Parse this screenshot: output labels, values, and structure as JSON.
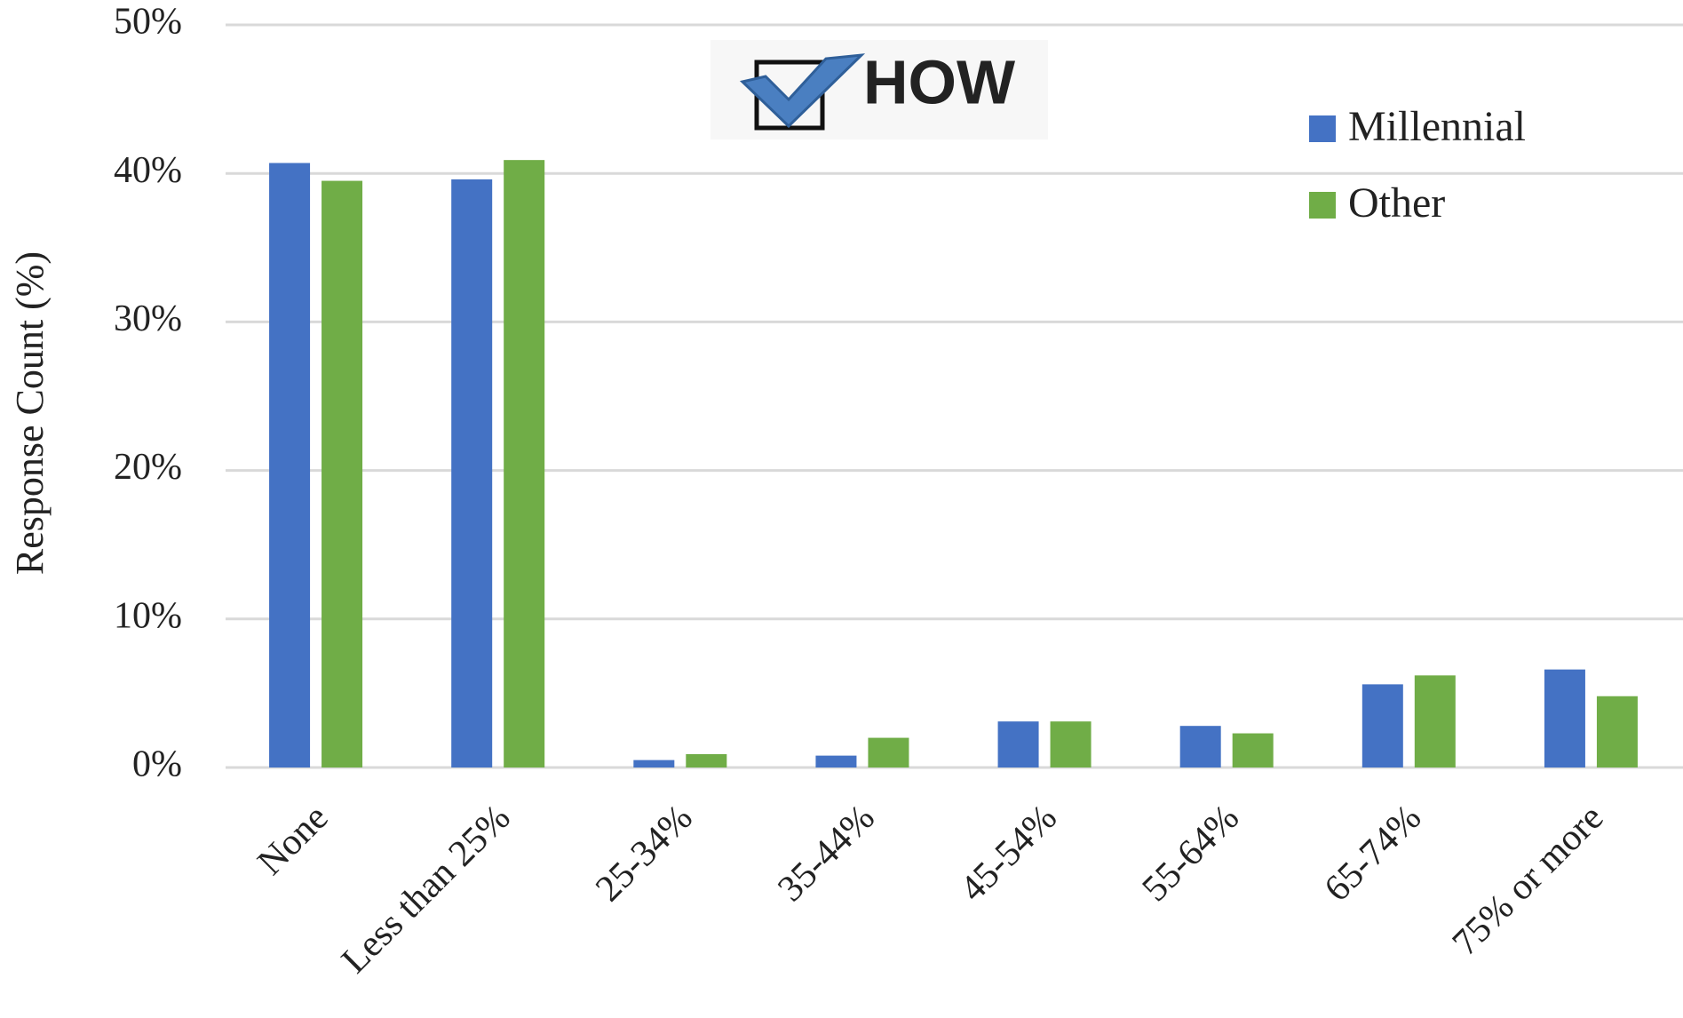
{
  "chart_data": {
    "type": "bar",
    "annotations": [
      "HOW"
    ],
    "ylabel": "Response Count (%)",
    "categories": [
      "None",
      "Less than 25%",
      "25-34%",
      "35-44%",
      "45-54%",
      "55-64%",
      "65-74%",
      "75% or more"
    ],
    "series": [
      {
        "name": "Millennial",
        "color": "#4472c4",
        "values": [
          40.7,
          39.6,
          0.5,
          0.8,
          3.1,
          2.8,
          5.6,
          6.6
        ]
      },
      {
        "name": "Other",
        "color": "#70ad47",
        "values": [
          39.5,
          40.9,
          0.9,
          2.0,
          3.1,
          2.3,
          6.2,
          4.8
        ]
      }
    ],
    "ylim": [
      0,
      50
    ],
    "yticks": [
      {
        "value": 0,
        "label": "0%"
      },
      {
        "value": 10,
        "label": "10%"
      },
      {
        "value": 20,
        "label": "20%"
      },
      {
        "value": 30,
        "label": "30%"
      },
      {
        "value": 40,
        "label": "40%"
      },
      {
        "value": 50,
        "label": "50%"
      }
    ],
    "grid": true,
    "legend": "top-right"
  }
}
